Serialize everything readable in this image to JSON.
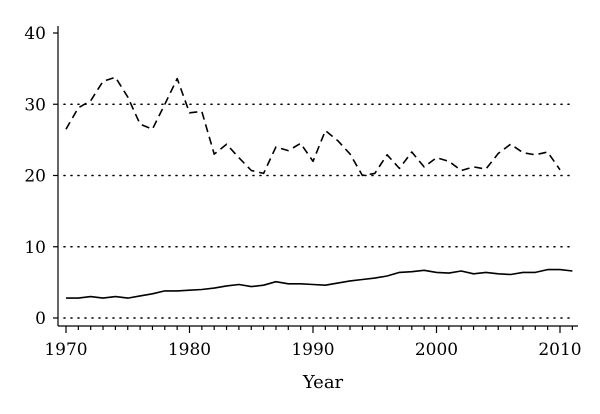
{
  "chart_data": {
    "type": "line",
    "title": "",
    "xlabel": "Year",
    "ylabel": "",
    "xlim": [
      1969.5,
      2012
    ],
    "ylim": [
      0,
      40
    ],
    "x_ticks": [
      1970,
      1980,
      1990,
      2000,
      2010
    ],
    "y_ticks": [
      0,
      10,
      20,
      30,
      40
    ],
    "grid": "horizontal dotted at 0, 10, 20, 30",
    "legend": "none",
    "colors": {
      "line": "#000000",
      "grid": "#000000"
    },
    "series": [
      {
        "style": "dashed",
        "x": [
          1970,
          1971,
          1972,
          1973,
          1974,
          1975,
          1976,
          1977,
          1978,
          1979,
          1980,
          1981,
          1982,
          1983,
          1984,
          1985,
          1986,
          1987,
          1988,
          1989,
          1990,
          1991,
          1992,
          1993,
          1994,
          1995,
          1996,
          1997,
          1998,
          1999,
          2000,
          2001,
          2002,
          2003,
          2004,
          2005,
          2006,
          2007,
          2008,
          2009,
          2010
        ],
        "y": [
          26.5,
          29.5,
          30.5,
          33.2,
          33.8,
          31.0,
          27.2,
          26.5,
          30.0,
          33.6,
          28.8,
          29.0,
          23.0,
          24.4,
          22.5,
          20.7,
          20.3,
          24.0,
          23.5,
          24.5,
          22.0,
          26.3,
          24.9,
          23.0,
          20.0,
          20.3,
          22.9,
          21.0,
          23.3,
          21.2,
          22.5,
          22.0,
          20.7,
          21.2,
          20.9,
          23.1,
          24.4,
          23.2,
          22.9,
          23.3,
          20.8
        ]
      },
      {
        "style": "solid",
        "x": [
          1970,
          1971,
          1972,
          1973,
          1974,
          1975,
          1976,
          1977,
          1978,
          1979,
          1980,
          1981,
          1982,
          1983,
          1984,
          1985,
          1986,
          1987,
          1988,
          1989,
          1990,
          1991,
          1992,
          1993,
          1994,
          1995,
          1996,
          1997,
          1998,
          1999,
          2000,
          2001,
          2002,
          2003,
          2004,
          2005,
          2006,
          2007,
          2008,
          2009,
          2010,
          2011
        ],
        "y": [
          2.8,
          2.8,
          3.0,
          2.8,
          3.0,
          2.8,
          3.1,
          3.4,
          3.8,
          3.8,
          3.9,
          4.0,
          4.2,
          4.5,
          4.7,
          4.4,
          4.6,
          5.1,
          4.8,
          4.8,
          4.7,
          4.6,
          4.9,
          5.2,
          5.4,
          5.6,
          5.9,
          6.4,
          6.5,
          6.7,
          6.4,
          6.3,
          6.6,
          6.2,
          6.4,
          6.2,
          6.1,
          6.4,
          6.4,
          6.8,
          6.8,
          6.6
        ]
      }
    ]
  }
}
